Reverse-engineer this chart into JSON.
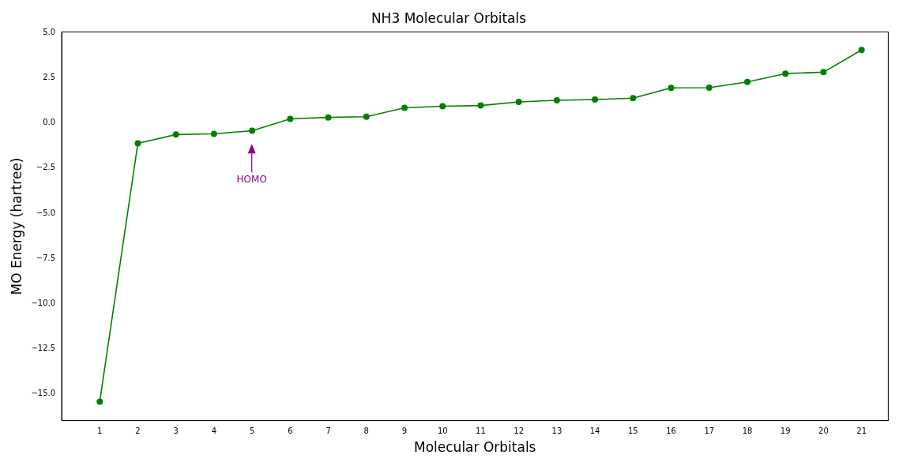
{
  "chart_data": {
    "type": "line",
    "title": "NH3 Molecular Orbitals",
    "xlabel": "Molecular Orbitals",
    "ylabel": "MO Energy (hartree)",
    "x": [
      1,
      2,
      3,
      4,
      5,
      6,
      7,
      8,
      9,
      10,
      11,
      12,
      13,
      14,
      15,
      16,
      17,
      18,
      19,
      20,
      21
    ],
    "series": [
      {
        "color": "#008000",
        "values": [
          -15.45,
          -1.13,
          -0.64,
          -0.6,
          -0.43,
          0.23,
          0.31,
          0.35,
          0.84,
          0.93,
          0.97,
          1.17,
          1.26,
          1.3,
          1.38,
          1.95,
          1.96,
          2.28,
          2.74,
          2.82,
          4.05
        ]
      }
    ],
    "xlim": [
      0,
      21.7
    ],
    "xticks": [
      1,
      2,
      3,
      4,
      5,
      6,
      7,
      8,
      9,
      10,
      11,
      12,
      13,
      14,
      15,
      16,
      17,
      18,
      19,
      20,
      21
    ],
    "ylim": [
      -16.5,
      5.05
    ],
    "yticks": [
      {
        "value": -15,
        "label": "−15.0"
      },
      {
        "value": -12.5,
        "label": "−12.5"
      },
      {
        "value": -10,
        "label": "−10.0"
      },
      {
        "value": -7.5,
        "label": "−7.5"
      },
      {
        "value": -5,
        "label": "−5.0"
      },
      {
        "value": -2.5,
        "label": "−2.5"
      },
      {
        "value": 0,
        "label": "0.0"
      },
      {
        "value": 2.5,
        "label": "2.5"
      },
      {
        "value": 5,
        "label": "5.0"
      }
    ],
    "annotations": [
      "HOMO"
    ],
    "marker": "circle",
    "line_style": "solid",
    "grid": false,
    "legend": false
  }
}
